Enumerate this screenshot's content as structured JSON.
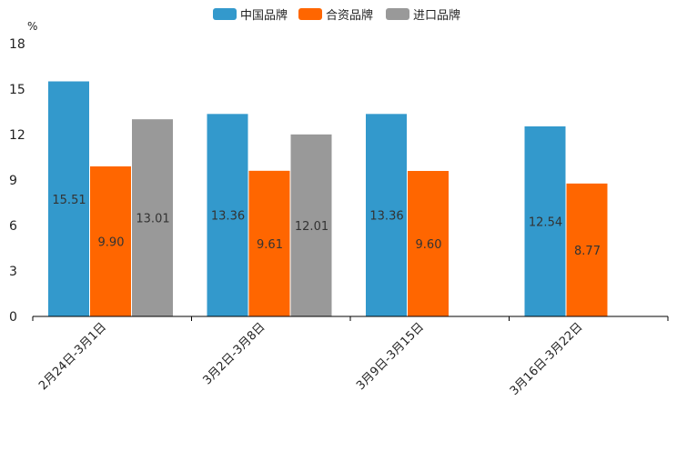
{
  "chart_data": {
    "type": "bar",
    "unit": "%",
    "categories": [
      "2月24日-3月1日",
      "3月2日-3月8日",
      "3月9日-3月15日",
      "3月16日-3月22日"
    ],
    "series": [
      {
        "name": "中国品牌",
        "color": "#3399cc",
        "values": [
          15.51,
          13.36,
          13.36,
          12.54
        ],
        "labels": [
          "15.51",
          "13.36",
          "13.36",
          "12.54"
        ]
      },
      {
        "name": "合资品牌",
        "color": "#ff6600",
        "values": [
          9.9,
          9.61,
          9.6,
          8.77
        ],
        "labels": [
          "9.90",
          "9.61",
          "9.60",
          "8.77"
        ]
      },
      {
        "name": "进口品牌",
        "color": "#999999",
        "values": [
          13.01,
          12.01,
          null,
          null
        ],
        "labels": [
          "13.01",
          "12.01",
          null,
          null
        ]
      }
    ],
    "y_ticks": [
      "0",
      "3",
      "6",
      "9",
      "12",
      "15",
      "18"
    ],
    "ylim": [
      0,
      18
    ],
    "legend_position": "top-center",
    "grid": false
  }
}
